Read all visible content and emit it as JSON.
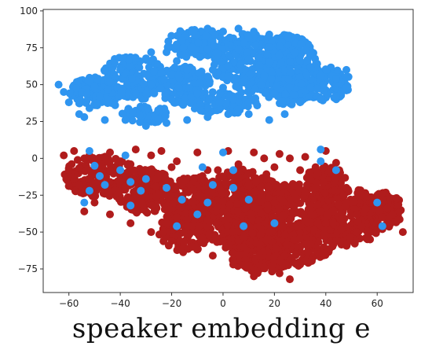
{
  "chart_data": {
    "type": "scatter",
    "title": "",
    "xlabel": "",
    "ylabel": "",
    "xlim": [
      -70,
      74
    ],
    "ylim": [
      -91,
      101
    ],
    "x_ticks": [
      -60,
      -40,
      -20,
      0,
      20,
      40,
      60
    ],
    "y_ticks": [
      100,
      75,
      50,
      25,
      0,
      -25,
      -50,
      -75
    ],
    "grid": false,
    "legend": "none",
    "series": [
      {
        "color": "#b01c1c",
        "regions": [
          {
            "cx": -48,
            "cy": -12,
            "rx": 14,
            "ry": 14
          },
          {
            "cx": -30,
            "cy": -22,
            "rx": 12,
            "ry": 16
          },
          {
            "cx": -12,
            "cy": -30,
            "rx": 12,
            "ry": 18
          },
          {
            "cx": 8,
            "cy": -35,
            "rx": 18,
            "ry": 28
          },
          {
            "cx": 28,
            "cy": -45,
            "rx": 18,
            "ry": 28
          },
          {
            "cx": 48,
            "cy": -40,
            "rx": 14,
            "ry": 20
          },
          {
            "cx": 62,
            "cy": -35,
            "rx": 8,
            "ry": 12
          },
          {
            "cx": -15,
            "cy": -50,
            "rx": 10,
            "ry": 14
          },
          {
            "cx": 15,
            "cy": -60,
            "rx": 14,
            "ry": 18
          },
          {
            "cx": 40,
            "cy": -15,
            "rx": 8,
            "ry": 10
          }
        ],
        "points": [
          [
            -62,
            2
          ],
          [
            -58,
            5
          ],
          [
            -52,
            2
          ],
          [
            -44,
            4
          ],
          [
            -34,
            6
          ],
          [
            -24,
            5
          ],
          [
            -10,
            4
          ],
          [
            2,
            5
          ],
          [
            12,
            4
          ],
          [
            22,
            3
          ],
          [
            32,
            1
          ],
          [
            40,
            5
          ],
          [
            44,
            -3
          ],
          [
            30,
            -8
          ],
          [
            20,
            -6
          ],
          [
            6,
            -4
          ],
          [
            -6,
            -8
          ],
          [
            -20,
            -6
          ],
          [
            -36,
            -4
          ],
          [
            -50,
            -6
          ],
          [
            -60,
            -8
          ],
          [
            -56,
            -18
          ],
          [
            -46,
            -24
          ],
          [
            -38,
            -14
          ],
          [
            -26,
            -14
          ],
          [
            -16,
            -18
          ],
          [
            -4,
            -20
          ],
          [
            10,
            -18
          ],
          [
            24,
            -18
          ],
          [
            36,
            -20
          ],
          [
            48,
            -20
          ],
          [
            56,
            -26
          ],
          [
            64,
            -34
          ],
          [
            68,
            -42
          ],
          [
            70,
            -50
          ],
          [
            62,
            -48
          ],
          [
            52,
            -50
          ],
          [
            44,
            -56
          ],
          [
            38,
            -64
          ],
          [
            30,
            -72
          ],
          [
            22,
            -78
          ],
          [
            12,
            -80
          ],
          [
            4,
            -72
          ],
          [
            -4,
            -66
          ],
          [
            -12,
            -60
          ],
          [
            -20,
            -56
          ],
          [
            -28,
            -50
          ],
          [
            -36,
            -44
          ],
          [
            -44,
            -38
          ],
          [
            -50,
            -30
          ],
          [
            -54,
            -36
          ],
          [
            -40,
            -28
          ],
          [
            -30,
            -36
          ],
          [
            -18,
            -40
          ],
          [
            -6,
            -42
          ],
          [
            6,
            -46
          ],
          [
            18,
            -50
          ],
          [
            30,
            -54
          ],
          [
            40,
            -44
          ],
          [
            52,
            -38
          ],
          [
            58,
            -30
          ],
          [
            48,
            -30
          ],
          [
            34,
            -32
          ],
          [
            20,
            -30
          ],
          [
            8,
            -28
          ],
          [
            -4,
            -30
          ],
          [
            -16,
            -30
          ],
          [
            -26,
            -26
          ],
          [
            -34,
            -22
          ],
          [
            -44,
            -16
          ],
          [
            14,
            -66
          ],
          [
            24,
            -66
          ],
          [
            34,
            -58
          ],
          [
            -8,
            -54
          ],
          [
            0,
            -56
          ],
          [
            8,
            -60
          ],
          [
            16,
            -74
          ],
          [
            26,
            -82
          ],
          [
            -14,
            -46
          ],
          [
            -22,
            -44
          ],
          [
            42,
            -10
          ],
          [
            36,
            -6
          ],
          [
            26,
            0
          ],
          [
            16,
            0
          ],
          [
            4,
            -12
          ],
          [
            -8,
            -12
          ],
          [
            -18,
            -2
          ],
          [
            -28,
            2
          ],
          [
            -40,
            -2
          ],
          [
            -54,
            0
          ],
          [
            60,
            -44
          ],
          [
            54,
            -46
          ],
          [
            46,
            -48
          ],
          [
            62,
            -40
          ],
          [
            66,
            -38
          ],
          [
            -2,
            -8
          ],
          [
            10,
            -10
          ],
          [
            28,
            -24
          ],
          [
            38,
            -36
          ],
          [
            0,
            -36
          ]
        ]
      },
      {
        "color": "#2f95f0",
        "regions": [
          {
            "cx": -50,
            "cy": 45,
            "rx": 10,
            "ry": 10
          },
          {
            "cx": -35,
            "cy": 55,
            "rx": 12,
            "ry": 16
          },
          {
            "cx": -15,
            "cy": 50,
            "rx": 10,
            "ry": 14
          },
          {
            "cx": -10,
            "cy": 78,
            "rx": 12,
            "ry": 10
          },
          {
            "cx": 10,
            "cy": 65,
            "rx": 14,
            "ry": 20
          },
          {
            "cx": 25,
            "cy": 60,
            "rx": 12,
            "ry": 24
          },
          {
            "cx": 40,
            "cy": 50,
            "rx": 10,
            "ry": 12
          },
          {
            "cx": 0,
            "cy": 38,
            "rx": 14,
            "ry": 8
          },
          {
            "cx": -30,
            "cy": 30,
            "rx": 10,
            "ry": 6
          }
        ],
        "points": [
          [
            -62,
            45
          ],
          [
            -64,
            50
          ],
          [
            -60,
            38
          ],
          [
            -56,
            30
          ],
          [
            -52,
            34
          ],
          [
            -48,
            42
          ],
          [
            -44,
            52
          ],
          [
            -40,
            60
          ],
          [
            -34,
            68
          ],
          [
            -28,
            72
          ],
          [
            -22,
            72
          ],
          [
            -16,
            80
          ],
          [
            -12,
            86
          ],
          [
            -6,
            88
          ],
          [
            0,
            86
          ],
          [
            6,
            88
          ],
          [
            12,
            86
          ],
          [
            18,
            84
          ],
          [
            22,
            76
          ],
          [
            28,
            72
          ],
          [
            30,
            66
          ],
          [
            34,
            62
          ],
          [
            38,
            56
          ],
          [
            44,
            54
          ],
          [
            48,
            60
          ],
          [
            48,
            48
          ],
          [
            44,
            42
          ],
          [
            38,
            40
          ],
          [
            30,
            38
          ],
          [
            24,
            30
          ],
          [
            18,
            26
          ],
          [
            10,
            30
          ],
          [
            2,
            30
          ],
          [
            -6,
            28
          ],
          [
            -14,
            26
          ],
          [
            -22,
            24
          ],
          [
            -30,
            22
          ],
          [
            -38,
            26
          ],
          [
            -46,
            26
          ],
          [
            -54,
            28
          ],
          [
            -20,
            40
          ],
          [
            -10,
            44
          ],
          [
            0,
            48
          ],
          [
            8,
            52
          ],
          [
            16,
            56
          ],
          [
            20,
            44
          ],
          [
            12,
            40
          ],
          [
            4,
            40
          ],
          [
            -4,
            60
          ],
          [
            -14,
            60
          ],
          [
            -24,
            58
          ],
          [
            -34,
            44
          ],
          [
            -42,
            36
          ],
          [
            -18,
            66
          ],
          [
            -6,
            74
          ],
          [
            6,
            74
          ],
          [
            14,
            68
          ],
          [
            26,
            48
          ],
          [
            34,
            48
          ],
          [
            -28,
            50
          ],
          [
            -52,
            5
          ],
          [
            -50,
            -5
          ],
          [
            -48,
            -12
          ],
          [
            -52,
            -22
          ],
          [
            -54,
            -30
          ],
          [
            -46,
            -18
          ],
          [
            -40,
            -8
          ],
          [
            -36,
            -16
          ],
          [
            -32,
            -22
          ],
          [
            -36,
            -32
          ],
          [
            -30,
            -14
          ],
          [
            -22,
            -20
          ],
          [
            -16,
            -28
          ],
          [
            -18,
            -46
          ],
          [
            -10,
            -38
          ],
          [
            -6,
            -30
          ],
          [
            -4,
            -18
          ],
          [
            -8,
            -6
          ],
          [
            0,
            4
          ],
          [
            4,
            -8
          ],
          [
            4,
            -20
          ],
          [
            10,
            -28
          ],
          [
            8,
            -46
          ],
          [
            20,
            -44
          ],
          [
            38,
            6
          ],
          [
            38,
            -2
          ],
          [
            44,
            -8
          ],
          [
            60,
            -30
          ],
          [
            62,
            -46
          ],
          [
            -38,
            2
          ]
        ]
      }
    ],
    "caption": "speaker embedding e"
  }
}
